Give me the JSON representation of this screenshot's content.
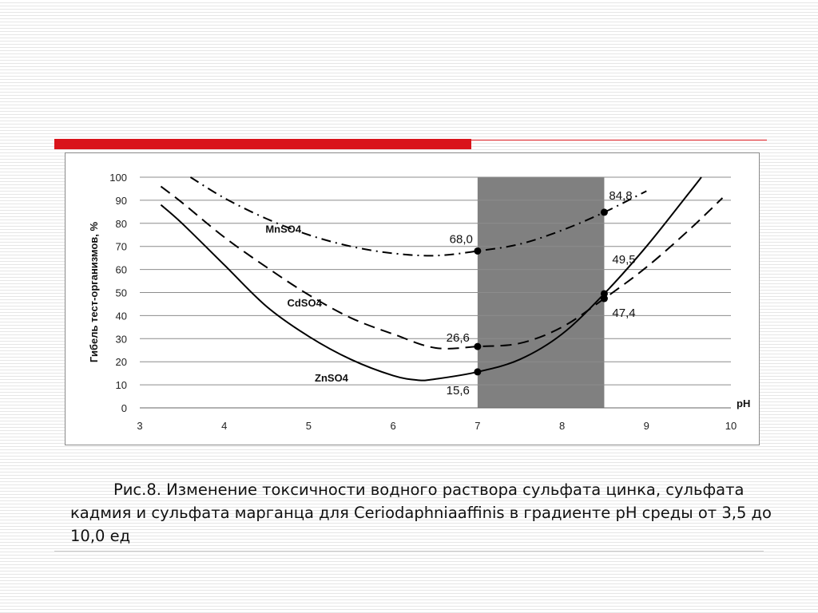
{
  "colors": {
    "accent": "#d9141b",
    "band": "#808080",
    "grid": "#8c8c8c",
    "series": "#000000"
  },
  "chart_data": {
    "type": "line",
    "xlabel": "pH",
    "ylabel": "Гибель тест-организмов, %",
    "xlim": [
      3,
      10
    ],
    "ylim": [
      0,
      100
    ],
    "x_ticks": [
      3,
      4,
      5,
      6,
      7,
      8,
      9,
      10
    ],
    "y_ticks": [
      0,
      10,
      20,
      30,
      40,
      50,
      60,
      70,
      80,
      90,
      100
    ],
    "grid": "horizontal",
    "shaded_region": {
      "x_from": 7,
      "x_to": 8.5
    },
    "series": [
      {
        "name": "MnSO4",
        "style": "dash-dot",
        "x": [
          3.6,
          4.0,
          4.5,
          5.0,
          5.5,
          6.0,
          6.5,
          7.0,
          7.5,
          8.0,
          8.5,
          9.0
        ],
        "y": [
          100,
          91,
          82,
          75,
          70,
          67,
          66,
          68,
          71,
          77,
          84.8,
          94
        ],
        "markers": [
          {
            "x": 7,
            "y": 68.0,
            "label": "68,0"
          },
          {
            "x": 8.5,
            "y": 84.8,
            "label": "84,8"
          }
        ]
      },
      {
        "name": "CdSO4",
        "style": "dashed",
        "x": [
          3.25,
          3.5,
          4.0,
          4.5,
          5.0,
          5.5,
          6.0,
          6.5,
          7.0,
          7.5,
          8.0,
          8.5,
          9.0,
          9.5,
          9.9
        ],
        "y": [
          96,
          89,
          74,
          61,
          49,
          39,
          32,
          26,
          26.6,
          28,
          35,
          47.4,
          61,
          77,
          91
        ],
        "markers": [
          {
            "x": 7,
            "y": 26.6,
            "label": "26,6"
          },
          {
            "x": 8.5,
            "y": 47.4,
            "label": "47,4"
          }
        ]
      },
      {
        "name": "ZnSO4",
        "style": "solid",
        "x": [
          3.25,
          3.5,
          4.0,
          4.5,
          5.0,
          5.5,
          6.0,
          6.3,
          6.5,
          7.0,
          7.5,
          8.0,
          8.5,
          9.0,
          9.5,
          9.65
        ],
        "y": [
          88,
          80,
          62,
          44,
          31,
          21,
          14,
          12,
          12.5,
          15.6,
          21,
          32,
          49.5,
          70,
          93,
          100
        ],
        "markers": [
          {
            "x": 7,
            "y": 15.6,
            "label": "15,6"
          },
          {
            "x": 8.5,
            "y": 49.5,
            "label": "49,5"
          }
        ]
      }
    ]
  },
  "caption": "Рис.8.  Изменение токсичности водного раствора сульфата цинка, сульфата кадмия и сульфата марганца для Ceriodaphniaaffinis в градиенте pH среды от 3,5 до 10,0 ед"
}
